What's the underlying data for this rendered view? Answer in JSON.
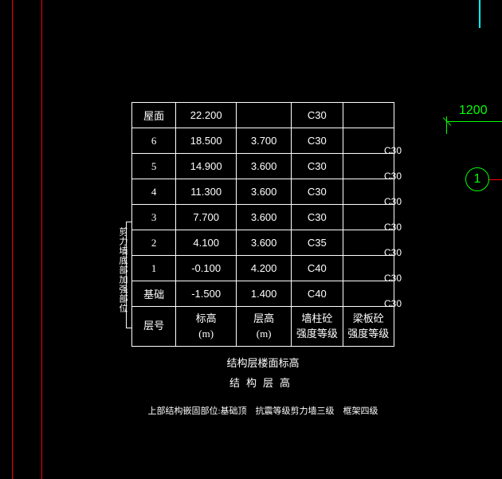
{
  "borders": {
    "red_line_color": "#ff0000",
    "cyan_tick_color": "#00ffff"
  },
  "dimension": {
    "value": "1200",
    "color": "#00ff00"
  },
  "grid_bubble": {
    "label": "1",
    "stroke": "#00ff00"
  },
  "table": {
    "background": "#000000",
    "border_color": "#ffffff",
    "text_color": "#ffffff",
    "columns": {
      "floor": "层号",
      "elevation": "标高\n(m)",
      "height": "层高\n(m)",
      "wall_grade": "墙柱砼\n强度等级",
      "beam_grade": "梁板砼\n强度等级"
    },
    "rows": [
      {
        "floor": "屋面",
        "elevation": "22.200",
        "height": "",
        "wall": "C30",
        "beam_off": ""
      },
      {
        "floor": "6",
        "elevation": "18.500",
        "height": "3.700",
        "wall": "C30",
        "beam_off": "C30"
      },
      {
        "floor": "5",
        "elevation": "14.900",
        "height": "3.600",
        "wall": "C30",
        "beam_off": "C30"
      },
      {
        "floor": "4",
        "elevation": "11.300",
        "height": "3.600",
        "wall": "C30",
        "beam_off": "C30"
      },
      {
        "floor": "3",
        "elevation": "7.700",
        "height": "3.600",
        "wall": "C30",
        "beam_off": "C30"
      },
      {
        "floor": "2",
        "elevation": "4.100",
        "height": "3.600",
        "wall": "C35",
        "beam_off": "C30"
      },
      {
        "floor": "1",
        "elevation": "-0.100",
        "height": "4.200",
        "wall": "C40",
        "beam_off": "C30"
      },
      {
        "floor": "基础",
        "elevation": "-1.500",
        "height": "1.400",
        "wall": "C40",
        "beam_off": "C30"
      }
    ]
  },
  "vertical_label": "剪力墙底部加强部位",
  "captions": {
    "line1": "结构层楼面标高",
    "line2": "结构层高"
  },
  "footnote": "上部结构嵌固部位:基础顶　抗震等级剪力墙三级　框架四级"
}
